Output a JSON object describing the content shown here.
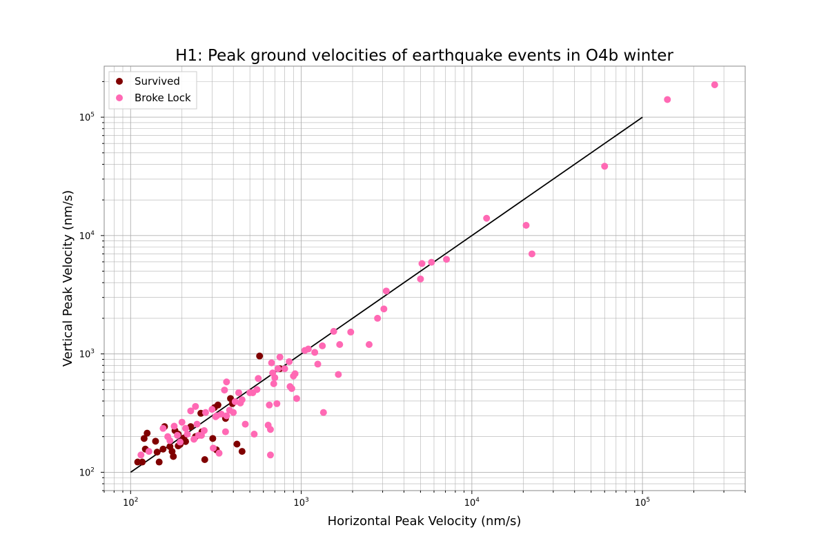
{
  "chart_data": {
    "type": "scatter",
    "title": "H1: Peak ground velocities of earthquake events in O4b winter",
    "xlabel": "Horizontal Peak Velocity (nm/s)",
    "ylabel": "Vertical Peak Velocity (nm/s)",
    "xscale": "log",
    "yscale": "log",
    "xlim": [
      70,
      400000
    ],
    "ylim": [
      70,
      270000
    ],
    "xticks": [
      100,
      1000,
      10000,
      100000
    ],
    "xtick_labels": [
      {
        "base": "10",
        "exp": "2"
      },
      {
        "base": "10",
        "exp": "3"
      },
      {
        "base": "10",
        "exp": "4"
      },
      {
        "base": "10",
        "exp": "5"
      }
    ],
    "yticks": [
      100,
      1000,
      10000,
      100000
    ],
    "ytick_labels": [
      {
        "base": "10",
        "exp": "2"
      },
      {
        "base": "10",
        "exp": "3"
      },
      {
        "base": "10",
        "exp": "4"
      },
      {
        "base": "10",
        "exp": "5"
      }
    ],
    "grid": true,
    "grid_minor": true,
    "legend_position": "top-left",
    "reference_line": {
      "x": [
        100,
        100000
      ],
      "y": [
        100,
        100000
      ],
      "color": "#000000"
    },
    "series": [
      {
        "name": "Survived",
        "color": "#800000",
        "points": [
          [
            110,
            122
          ],
          [
            117,
            122
          ],
          [
            120,
            193
          ],
          [
            122,
            157
          ],
          [
            125,
            214
          ],
          [
            140,
            183
          ],
          [
            143,
            148
          ],
          [
            147,
            122
          ],
          [
            155,
            157
          ],
          [
            158,
            243
          ],
          [
            170,
            165
          ],
          [
            175,
            150
          ],
          [
            178,
            136
          ],
          [
            182,
            225
          ],
          [
            190,
            210
          ],
          [
            195,
            172
          ],
          [
            190,
            167
          ],
          [
            205,
            195
          ],
          [
            210,
            182
          ],
          [
            225,
            243
          ],
          [
            240,
            200
          ],
          [
            258,
            315
          ],
          [
            262,
            220
          ],
          [
            272,
            128
          ],
          [
            303,
            193
          ],
          [
            310,
            352
          ],
          [
            318,
            155
          ],
          [
            325,
            370
          ],
          [
            360,
            285
          ],
          [
            385,
            420
          ],
          [
            395,
            380
          ],
          [
            420,
            173
          ],
          [
            450,
            150
          ],
          [
            570,
            960
          ],
          [
            750,
            750
          ]
        ]
      },
      {
        "name": "Broke Lock",
        "color": "#ff69b4",
        "points": [
          [
            115,
            140
          ],
          [
            128,
            150
          ],
          [
            155,
            235
          ],
          [
            165,
            200
          ],
          [
            170,
            185
          ],
          [
            180,
            245
          ],
          [
            188,
            205
          ],
          [
            195,
            180
          ],
          [
            200,
            265
          ],
          [
            210,
            235
          ],
          [
            215,
            210
          ],
          [
            225,
            330
          ],
          [
            235,
            190
          ],
          [
            240,
            360
          ],
          [
            245,
            255
          ],
          [
            250,
            205
          ],
          [
            260,
            205
          ],
          [
            270,
            225
          ],
          [
            275,
            320
          ],
          [
            300,
            340
          ],
          [
            305,
            160
          ],
          [
            315,
            295
          ],
          [
            320,
            300
          ],
          [
            330,
            145
          ],
          [
            340,
            310
          ],
          [
            355,
            495
          ],
          [
            360,
            220
          ],
          [
            365,
            580
          ],
          [
            365,
            300
          ],
          [
            380,
            335
          ],
          [
            400,
            320
          ],
          [
            410,
            395
          ],
          [
            430,
            470
          ],
          [
            440,
            385
          ],
          [
            450,
            410
          ],
          [
            470,
            255
          ],
          [
            500,
            470
          ],
          [
            520,
            470
          ],
          [
            530,
            210
          ],
          [
            550,
            500
          ],
          [
            560,
            620
          ],
          [
            640,
            250
          ],
          [
            650,
            370
          ],
          [
            660,
            230
          ],
          [
            660,
            140
          ],
          [
            670,
            840
          ],
          [
            680,
            690
          ],
          [
            690,
            560
          ],
          [
            700,
            630
          ],
          [
            720,
            380
          ],
          [
            730,
            750
          ],
          [
            750,
            940
          ],
          [
            800,
            750
          ],
          [
            850,
            860
          ],
          [
            860,
            530
          ],
          [
            880,
            510
          ],
          [
            900,
            650
          ],
          [
            920,
            680
          ],
          [
            940,
            420
          ],
          [
            1050,
            1070
          ],
          [
            1100,
            1100
          ],
          [
            1200,
            1030
          ],
          [
            1250,
            820
          ],
          [
            1330,
            1170
          ],
          [
            1350,
            320
          ],
          [
            1550,
            1550
          ],
          [
            1650,
            670
          ],
          [
            1680,
            1200
          ],
          [
            1950,
            1530
          ],
          [
            2500,
            1200
          ],
          [
            2800,
            2000
          ],
          [
            3050,
            2400
          ],
          [
            3150,
            3400
          ],
          [
            5000,
            4300
          ],
          [
            5100,
            5800
          ],
          [
            5800,
            5950
          ],
          [
            7100,
            6300
          ],
          [
            12200,
            14000
          ],
          [
            20800,
            12200
          ],
          [
            22500,
            7000
          ],
          [
            60000,
            38500
          ],
          [
            140000,
            141000
          ],
          [
            265000,
            188000
          ]
        ]
      }
    ]
  }
}
